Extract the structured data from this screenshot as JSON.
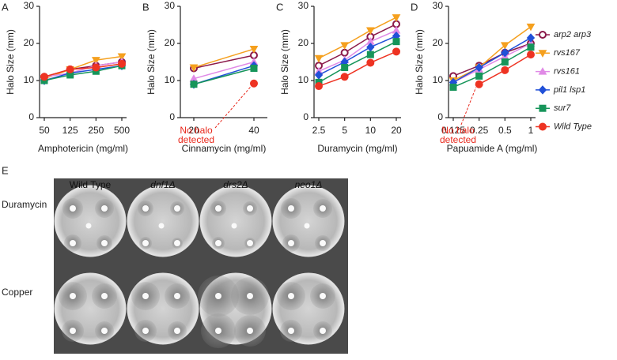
{
  "chart_data": [
    {
      "type": "line",
      "label": "A",
      "ylabel": "Halo Size (mm)",
      "xlabel": "Amphotericin (mg/ml)",
      "categories": [
        "50",
        "125",
        "250",
        "500"
      ],
      "ylim": [
        0,
        30
      ],
      "yticks": [
        0,
        10,
        20,
        30
      ],
      "series": [
        {
          "color": "#8b1a4a",
          "marker": "open-circle",
          "values": [
            11,
            13,
            14,
            15
          ]
        },
        {
          "color": "#f5a01e",
          "marker": "tri-down",
          "values": [
            10.5,
            13,
            15.5,
            16.5
          ]
        },
        {
          "color": "#e08ae6",
          "marker": "tri-up",
          "values": [
            11,
            12,
            14,
            15
          ]
        },
        {
          "color": "#2150d8",
          "marker": "diamond",
          "values": [
            10,
            12,
            13,
            14
          ]
        },
        {
          "color": "#16955a",
          "marker": "square",
          "values": [
            10,
            11.5,
            12.5,
            14
          ]
        },
        {
          "color": "#ee3322",
          "marker": "circle",
          "values": [
            11,
            13,
            13.5,
            14.5
          ]
        }
      ]
    },
    {
      "type": "line",
      "label": "B",
      "ylabel": "Halo Size (mm)",
      "xlabel": "Cinnamycin (mg/ml)",
      "categories": [
        "20",
        "40"
      ],
      "ylim": [
        0,
        30
      ],
      "yticks": [
        0,
        10,
        20,
        30
      ],
      "annotation": [
        "No halo",
        "detected"
      ],
      "series": [
        {
          "color": "#8b1a4a",
          "marker": "open-circle",
          "values": [
            13.3,
            16.8
          ]
        },
        {
          "color": "#f5a01e",
          "marker": "tri-down",
          "values": [
            13.5,
            18.5
          ]
        },
        {
          "color": "#e08ae6",
          "marker": "tri-up",
          "values": [
            10.5,
            15
          ]
        },
        {
          "color": "#2150d8",
          "marker": "diamond",
          "values": [
            9,
            14
          ]
        },
        {
          "color": "#16955a",
          "marker": "square",
          "values": [
            9,
            13.3
          ]
        },
        {
          "color": "#ee3322",
          "marker": "circle",
          "values": [
            null,
            9.2
          ]
        }
      ]
    },
    {
      "type": "line",
      "label": "C",
      "ylabel": "Halo Size (mm)",
      "xlabel": "Duramycin (mg/ml)",
      "categories": [
        "2.5",
        "5",
        "10",
        "20"
      ],
      "ylim": [
        0,
        30
      ],
      "yticks": [
        0,
        10,
        20,
        30
      ],
      "series": [
        {
          "color": "#8b1a4a",
          "marker": "open-circle",
          "values": [
            14,
            17.5,
            21.8,
            25.2
          ]
        },
        {
          "color": "#f5a01e",
          "marker": "tri-down",
          "values": [
            16,
            19.5,
            23.5,
            27
          ]
        },
        {
          "color": "#e08ae6",
          "marker": "tri-up",
          "values": [
            12.5,
            15.5,
            20.5,
            23.5
          ]
        },
        {
          "color": "#2150d8",
          "marker": "diamond",
          "values": [
            11.5,
            15,
            19,
            22
          ]
        },
        {
          "color": "#16955a",
          "marker": "square",
          "values": [
            9.5,
            13.5,
            17,
            20.5
          ]
        },
        {
          "color": "#ee3322",
          "marker": "circle",
          "values": [
            8.5,
            11,
            14.8,
            17.8
          ]
        }
      ]
    },
    {
      "type": "line",
      "label": "D",
      "ylabel": "Halo Size (mm)",
      "xlabel": "Papuamide A (mg/ml)",
      "categories": [
        "0.125",
        "0.25",
        "0.5",
        "1"
      ],
      "ylim": [
        0,
        30
      ],
      "yticks": [
        0,
        10,
        20,
        30
      ],
      "annotation": [
        "No halo",
        "detected"
      ],
      "series": [
        {
          "name": "arp2 arp3",
          "color": "#8b1a4a",
          "marker": "open-circle",
          "values": [
            11.2,
            14,
            17.5,
            20
          ]
        },
        {
          "name": "rvs167",
          "color": "#f5a01e",
          "marker": "tri-down",
          "values": [
            10,
            13.5,
            19.5,
            24.5
          ]
        },
        {
          "name": "rvs161",
          "color": "#e08ae6",
          "marker": "tri-up",
          "values": [
            9.5,
            13,
            16.5,
            20
          ]
        },
        {
          "name": "pil1 lsp1",
          "color": "#2150d8",
          "marker": "diamond",
          "values": [
            9.5,
            13.5,
            17.5,
            21.5
          ]
        },
        {
          "name": "sur7",
          "color": "#16955a",
          "marker": "square",
          "values": [
            8.2,
            11.2,
            15,
            19
          ]
        },
        {
          "name": "Wild Type",
          "color": "#ee3322",
          "marker": "circle",
          "values": [
            null,
            9,
            12.8,
            17
          ]
        }
      ]
    }
  ],
  "panel_e": {
    "label": "E",
    "columns": [
      "Wild Type",
      "dnf1Δ",
      "drs2Δ",
      "neo1Δ"
    ],
    "rows": [
      "Duramycin",
      "Copper"
    ]
  }
}
